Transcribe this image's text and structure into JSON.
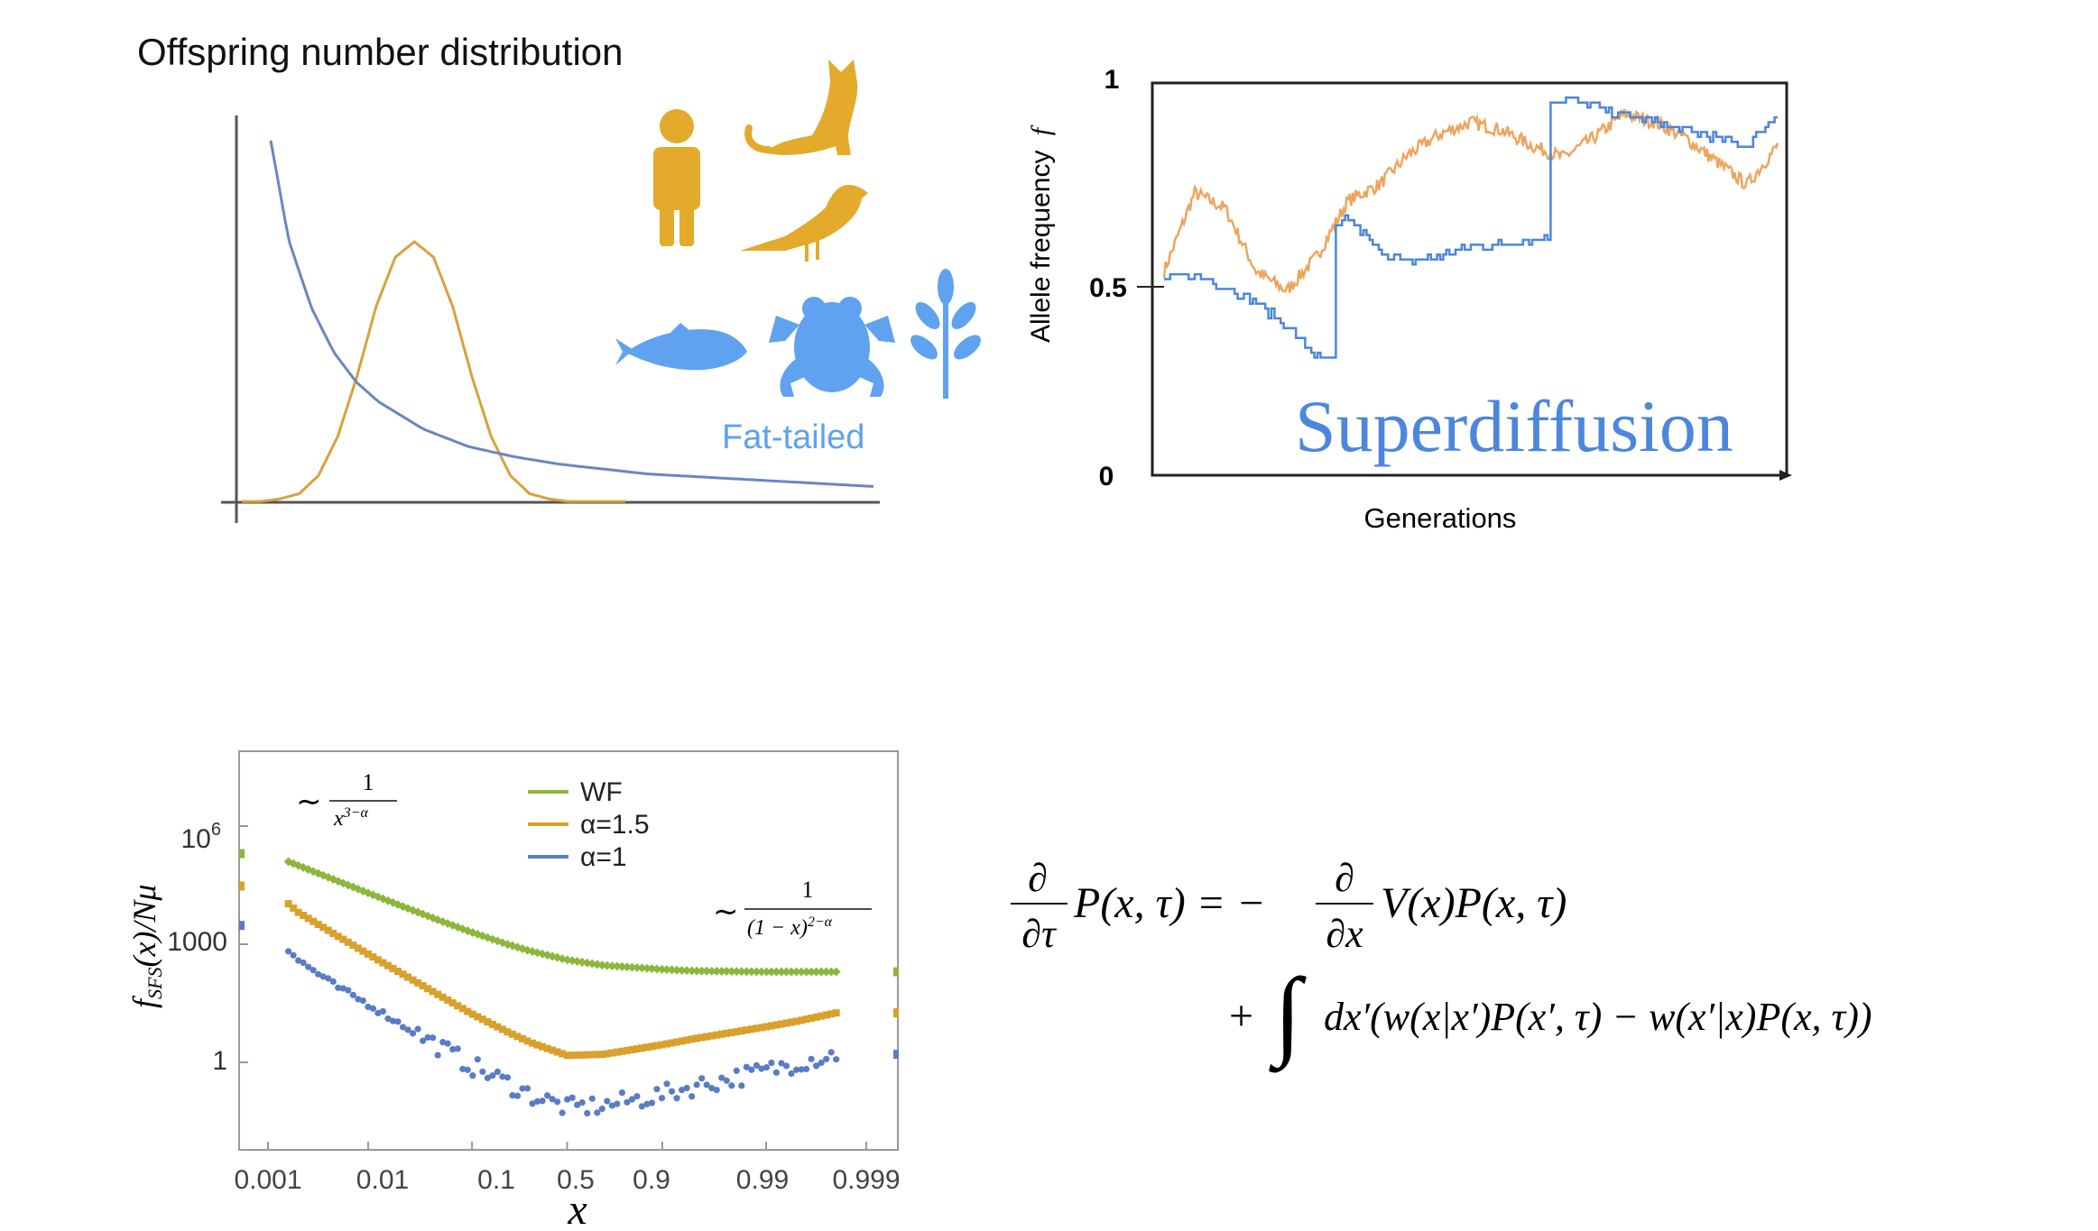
{
  "colors": {
    "gold": "#E3AA2C",
    "narrow": "#D9A23A",
    "blue": "#6A86C2",
    "lightblue": "#5EA2F0",
    "orangeWalk": "#EDA55E",
    "blueWalk": "#4C86DD",
    "wf": "#8DB63C",
    "a15": "#D9A02C",
    "a1": "#5A7CC4",
    "axis": "#555555",
    "frame": "#999999"
  },
  "panelA": {
    "title": "Offspring number distribution",
    "fat_tailed_label": "Fat-tailed",
    "icons_narrow": [
      "human-icon",
      "cat-icon",
      "bird-icon"
    ],
    "icons_fat": [
      "fish-icon",
      "frog-icon",
      "plant-icon"
    ]
  },
  "panelB": {
    "ylabel": "Allele frequency",
    "ylabel_symbol": "f",
    "xlabel": "Generations",
    "yticks": [
      "0",
      "0.5",
      "1"
    ],
    "overlay": "Superdiffusion"
  },
  "panelC": {
    "ylabel_f": "f",
    "ylabel_sub": "SFS",
    "ylabel_rest": "(x)/Nμ",
    "xlabel": "x",
    "ytick_labels": [
      "1",
      "1000"
    ],
    "ytick_1e6_base": "10",
    "ytick_1e6_exp": "6",
    "xtick_labels": [
      "0.001",
      "0.01",
      "0.1",
      "0.5",
      "0.9",
      "0.99",
      "0.999"
    ],
    "legend": [
      {
        "label": "WF",
        "color": "#8DB63C"
      },
      {
        "label": "α=1.5",
        "color": "#D9A02C"
      },
      {
        "label": "α=1",
        "color": "#5A7CC4"
      }
    ],
    "ann_left": {
      "tilde": "∼",
      "num": "1",
      "den": "x",
      "den_exp": "3−α"
    },
    "ann_right": {
      "tilde": "∼",
      "num": "1",
      "den": "(1 − x)",
      "den_exp": "2−α"
    }
  },
  "equation": {
    "lhs_num": "∂",
    "lhs_den": "∂τ",
    "lhs_rest": "P(x, τ) = −",
    "rhs_num": "∂",
    "rhs_den": "∂x",
    "rhs_rest": "V(x)P(x, τ)",
    "line2_plus": "+",
    "integral": "∫",
    "line2": "dx′(w(x|x′)P(x′, τ) − w(x′|x)P(x, τ))"
  },
  "chart_data": [
    {
      "type": "line",
      "title": "Offspring number distribution",
      "xlabel": "",
      "ylabel": "",
      "series": [
        {
          "name": "Narrow (Gaussian-like)",
          "color": "#D9A23A",
          "x": [
            0,
            0.5,
            1,
            1.5,
            2,
            2.5,
            3,
            3.5,
            4,
            4.5,
            5,
            5.5,
            6,
            6.5,
            7,
            7.5,
            8,
            8.5,
            9,
            9.5,
            10
          ],
          "y": [
            0.0,
            0.0,
            0.01,
            0.03,
            0.1,
            0.25,
            0.48,
            0.75,
            0.94,
            1.0,
            0.94,
            0.75,
            0.48,
            0.25,
            0.1,
            0.03,
            0.01,
            0.0,
            0.0,
            0.0,
            0.0
          ]
        },
        {
          "name": "Fat-tailed",
          "color": "#6A86C2",
          "x": [
            0.6,
            1,
            1.5,
            2,
            2.5,
            3,
            4,
            5,
            6,
            7,
            8,
            9,
            10,
            11,
            12,
            14
          ],
          "y": [
            1.45,
            1.05,
            0.78,
            0.6,
            0.48,
            0.4,
            0.29,
            0.22,
            0.18,
            0.15,
            0.13,
            0.11,
            0.1,
            0.09,
            0.08,
            0.06
          ]
        }
      ]
    },
    {
      "type": "line",
      "title": "Superdiffusion",
      "xlabel": "Generations",
      "ylabel": "Allele frequency f",
      "ylim": [
        0,
        1
      ],
      "yticks": [
        0,
        0.5,
        1
      ],
      "series": [
        {
          "name": "orange trajectory",
          "color": "#EDA55E",
          "x": [
            0,
            10,
            20,
            30,
            40,
            50,
            60,
            70,
            80,
            90,
            100,
            110,
            120,
            130,
            140,
            150,
            160,
            170,
            180,
            190,
            200
          ],
          "y": [
            0.52,
            0.72,
            0.68,
            0.52,
            0.47,
            0.56,
            0.7,
            0.74,
            0.82,
            0.87,
            0.9,
            0.88,
            0.84,
            0.81,
            0.86,
            0.92,
            0.9,
            0.86,
            0.8,
            0.74,
            0.84
          ]
        },
        {
          "name": "blue trajectory",
          "color": "#4C86DD",
          "x": [
            0,
            10,
            20,
            30,
            40,
            50,
            55,
            56,
            60,
            70,
            80,
            90,
            100,
            110,
            120,
            125,
            126,
            130,
            140,
            150,
            160,
            170,
            180,
            190,
            200
          ],
          "y": [
            0.5,
            0.51,
            0.48,
            0.44,
            0.38,
            0.3,
            0.29,
            0.63,
            0.66,
            0.57,
            0.54,
            0.56,
            0.58,
            0.59,
            0.6,
            0.61,
            0.95,
            0.96,
            0.94,
            0.92,
            0.9,
            0.88,
            0.86,
            0.84,
            0.92
          ]
        }
      ]
    },
    {
      "type": "scatter",
      "title": "",
      "xlabel": "x",
      "ylabel": "f_SFS(x)/Nμ",
      "xscale": "logit",
      "yscale": "log",
      "xticks": [
        0.001,
        0.01,
        0.1,
        0.5,
        0.9,
        0.99,
        0.999
      ],
      "ylim": [
        0.01,
        100000000.0
      ],
      "series": [
        {
          "name": "WF",
          "color": "#8DB63C",
          "x": [
            0.001,
            0.002,
            0.005,
            0.01,
            0.02,
            0.05,
            0.1,
            0.2,
            0.3,
            0.5,
            0.7,
            0.9,
            0.95,
            0.99,
            0.995,
            0.998
          ],
          "y": [
            200000,
            100000,
            40000,
            20000,
            10000,
            4000,
            2000,
            1000,
            670,
            400,
            290,
            230,
            210,
            200,
            200,
            200
          ]
        },
        {
          "name": "α=1.5",
          "color": "#D9A02C",
          "x": [
            0.001,
            0.002,
            0.005,
            0.01,
            0.02,
            0.05,
            0.1,
            0.2,
            0.3,
            0.5,
            0.7,
            0.9,
            0.95,
            0.99,
            0.995,
            0.998
          ],
          "y": [
            30000,
            6500,
            1600,
            560,
            200,
            50,
            17,
            6,
            3.2,
            1.5,
            1.6,
            2.8,
            4,
            8,
            11,
            18
          ]
        },
        {
          "name": "α=1",
          "color": "#5A7CC4",
          "x": [
            0.001,
            0.002,
            0.005,
            0.01,
            0.02,
            0.05,
            0.1,
            0.2,
            0.3,
            0.5,
            0.7,
            0.9,
            0.95,
            0.99,
            0.995,
            0.998
          ],
          "y": [
            3000,
            400,
            80,
            30,
            10,
            2.5,
            0.8,
            0.3,
            0.15,
            0.07,
            0.08,
            0.15,
            0.25,
            0.6,
            1.0,
            1.6
          ]
        }
      ]
    }
  ]
}
